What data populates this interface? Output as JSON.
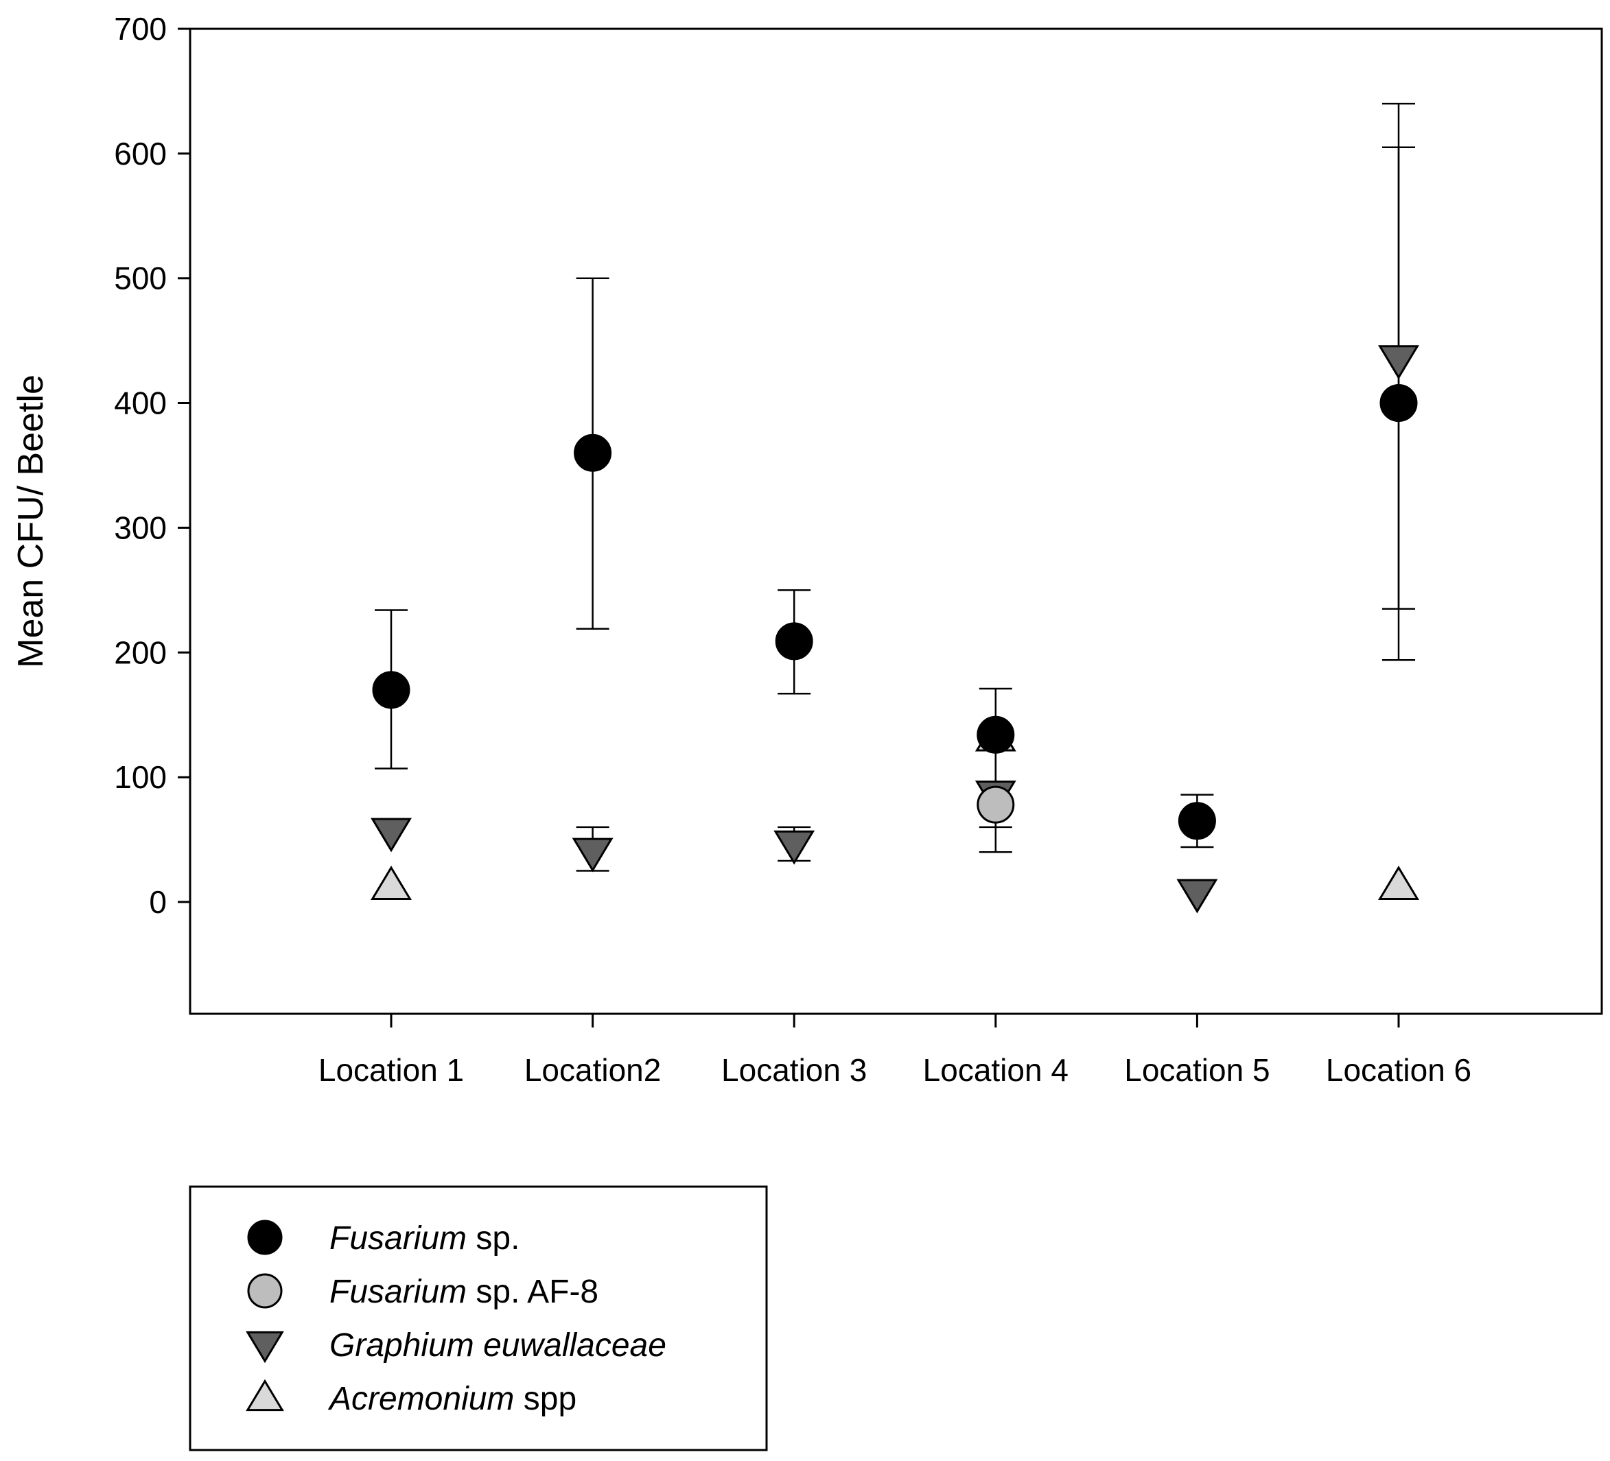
{
  "chart_data": {
    "type": "scatter",
    "title": "",
    "xlabel": "",
    "ylabel": "Mean CFU/ Beetle",
    "categories": [
      "Location 1",
      "Location2",
      "Location 3",
      "Location 4",
      "Location 5",
      "Location 6"
    ],
    "ylim": [
      -90,
      700
    ],
    "yticks": [
      0,
      100,
      200,
      300,
      400,
      500,
      600,
      700
    ],
    "grid": false,
    "legend_position": "bottom-left",
    "series": [
      {
        "name_italic": "Fusarium",
        "name_rest": "sp.",
        "marker": "circle",
        "color": "#000000",
        "values": [
          170,
          360,
          209,
          134,
          65,
          400
        ],
        "err_low": [
          107,
          219,
          167,
          null,
          44,
          194
        ],
        "err_high": [
          234,
          500,
          250,
          null,
          86,
          605
        ]
      },
      {
        "name_italic": "Fusarium",
        "name_rest": "sp. AF-8",
        "marker": "circle",
        "color": "#bdbdbd",
        "values": [
          null,
          null,
          null,
          78,
          null,
          null
        ],
        "err_low": [
          null,
          null,
          null,
          40,
          null,
          null
        ],
        "err_high": [
          null,
          null,
          null,
          122,
          null,
          null
        ]
      },
      {
        "name_italic": "Graphium euwallaceae",
        "name_rest": "",
        "marker": "triangle-down",
        "color": "#5f5f5f",
        "values": [
          56,
          40,
          46,
          86,
          7,
          435
        ],
        "err_low": [
          null,
          25,
          33,
          60,
          null,
          235
        ],
        "err_high": [
          null,
          60,
          60,
          171,
          null,
          640
        ]
      },
      {
        "name_italic": "Acremonium",
        "name_rest": "spp",
        "marker": "triangle-up",
        "color": "#d9d9d9",
        "values": [
          13,
          null,
          null,
          132,
          null,
          13
        ],
        "err_low": [
          null,
          null,
          null,
          null,
          null,
          null
        ],
        "err_high": [
          null,
          null,
          null,
          null,
          null,
          null
        ]
      }
    ]
  }
}
